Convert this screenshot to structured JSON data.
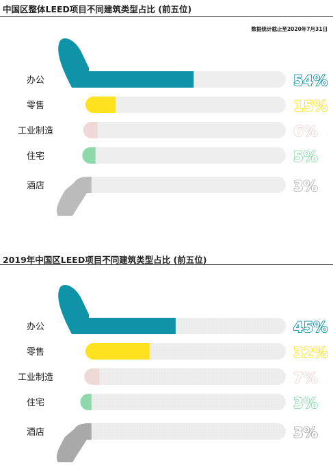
{
  "colors": {
    "track": "#eeeeee",
    "office": "#0f93a8",
    "retail": "#ffe21f",
    "industrial": "#eed9d7",
    "residential": "#8dd9ab",
    "hotel": "#bbbbbb"
  },
  "section1": {
    "title": "中国区整体LEED项目不同建筑类型占比 (前五位)",
    "note": "数据统计截止至2020年7月31日"
  },
  "section2": {
    "title": "2019年中国区LEED项目不同建筑类型占比 (前五位)"
  },
  "chart_data": [
    {
      "type": "bar",
      "orientation": "horizontal",
      "title": "中国区整体LEED项目不同建筑类型占比 (前五位)",
      "categories": [
        "办公",
        "零售",
        "工业制造",
        "住宅",
        "酒店"
      ],
      "values": [
        54,
        15,
        6,
        5,
        3
      ],
      "value_labels": [
        "54%",
        "15%",
        "6%",
        "5%",
        "3%"
      ],
      "unit": "%",
      "xlim": [
        0,
        100
      ],
      "category_colors": [
        "#0f93a8",
        "#ffe21f",
        "#eed9d7",
        "#8dd9ab",
        "#bbbbbb"
      ],
      "grid": false
    },
    {
      "type": "bar",
      "orientation": "horizontal",
      "title": "2019年中国区LEED项目不同建筑类型占比 (前五位)",
      "categories": [
        "办公",
        "零售",
        "工业制造",
        "住宅",
        "酒店"
      ],
      "values": [
        45,
        32,
        7,
        3,
        3
      ],
      "value_labels": [
        "45%",
        "32%",
        "7%",
        "3%",
        "3%"
      ],
      "unit": "%",
      "xlim": [
        0,
        100
      ],
      "category_colors": [
        "#0f93a8",
        "#ffe21f",
        "#eed9d7",
        "#8dd9ab",
        "#a9a9a9"
      ],
      "grid": false
    }
  ]
}
